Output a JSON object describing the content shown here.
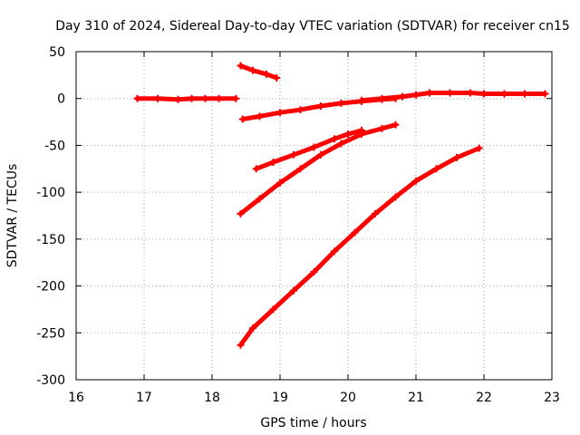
{
  "chart_data": {
    "type": "scatter",
    "title": "Day 310 of 2024, Sidereal Day-to-day VTEC variation (SDTVAR) for receiver cn15",
    "xlabel": "GPS time / hours",
    "ylabel": "SDTVAR / TECUs",
    "xlim": [
      16,
      23
    ],
    "ylim": [
      -300,
      50
    ],
    "xticks": [
      16,
      17,
      18,
      19,
      20,
      21,
      22,
      23
    ],
    "yticks": [
      50,
      0,
      -50,
      -100,
      -150,
      -200,
      -250,
      -300
    ],
    "grid": true,
    "color": "#ff0000",
    "series": [
      {
        "x": [
          16.9,
          17.2,
          17.5,
          17.7,
          17.9,
          18.1,
          18.35
        ],
        "y": [
          0,
          0,
          -1,
          0,
          0,
          0,
          0
        ]
      },
      {
        "x": [
          18.42,
          18.6,
          18.8,
          18.95
        ],
        "y": [
          35,
          30,
          26,
          22
        ]
      },
      {
        "x": [
          18.45,
          18.7,
          19.0,
          19.3,
          19.6,
          19.9,
          20.2,
          20.5,
          20.7
        ],
        "y": [
          -22,
          -19,
          -15,
          -12,
          -8,
          -5,
          -3,
          -1,
          0
        ]
      },
      {
        "x": [
          20.2,
          20.5,
          20.8,
          21.0,
          21.2,
          21.5,
          21.8,
          22.0,
          22.3,
          22.6,
          22.9
        ],
        "y": [
          -2,
          0,
          2,
          4,
          6,
          6,
          6,
          5,
          5,
          5,
          5
        ]
      },
      {
        "x": [
          18.65,
          18.9,
          19.2,
          19.5,
          19.8,
          20.0,
          20.2
        ],
        "y": [
          -75,
          -68,
          -60,
          -52,
          -43,
          -38,
          -34
        ]
      },
      {
        "x": [
          18.42,
          18.7,
          19.0,
          19.3,
          19.6,
          19.9,
          20.2,
          20.5,
          20.7
        ],
        "y": [
          -123,
          -107,
          -90,
          -75,
          -60,
          -48,
          -38,
          -32,
          -28
        ]
      },
      {
        "x": [
          18.42,
          18.6,
          18.9,
          19.2,
          19.5,
          19.8,
          20.1,
          20.4,
          20.7,
          21.0,
          21.3,
          21.6,
          21.93
        ],
        "y": [
          -263,
          -245,
          -225,
          -205,
          -185,
          -163,
          -143,
          -123,
          -105,
          -88,
          -75,
          -63,
          -53
        ]
      }
    ]
  }
}
